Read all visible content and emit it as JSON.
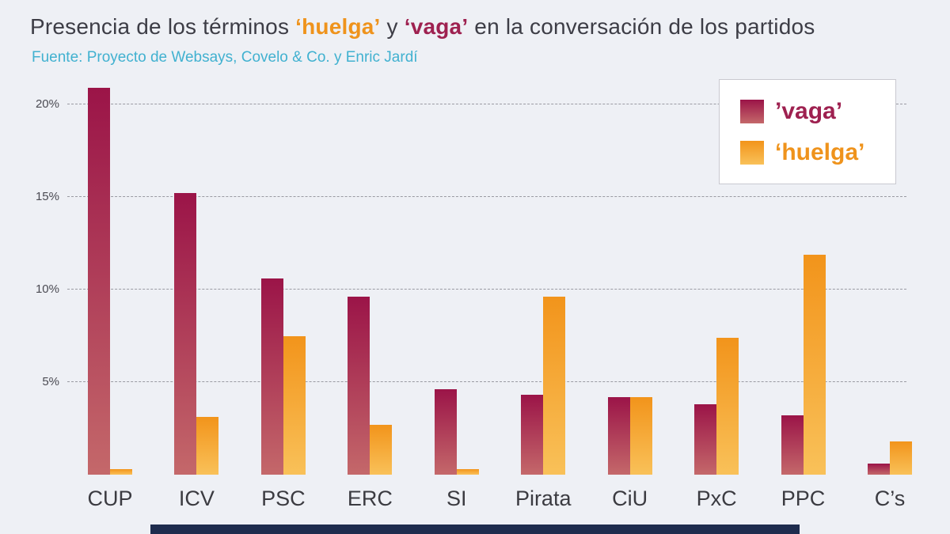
{
  "title": {
    "prefix": "Presencia de los términos ",
    "term_huelga": "‘huelga’",
    "middle": " y ",
    "term_vaga": "‘vaga’",
    "suffix": " en la conversación de los partidos"
  },
  "source": "Fuente: Proyecto de Websays, Covelo & Co. y Enric Jardí",
  "legend": {
    "vaga_label": "’vaga’",
    "huelga_label": "‘huelga’"
  },
  "colors": {
    "vaga_top": "#9b1448",
    "vaga_bottom": "#c4686a",
    "huelga_top": "#f2941b",
    "huelga_bottom": "#f9c159",
    "vaga_text": "#9e2150",
    "huelga_text": "#ef931c",
    "title_text": "#3d3d46",
    "source_text": "#41b1d0",
    "background": "#eef0f5",
    "footer": "#1e2c4e"
  },
  "chart_data": {
    "type": "bar",
    "categories": [
      "CUP",
      "ICV",
      "PSC",
      "ERC",
      "SI",
      "Pirata",
      "CiU",
      "PxC",
      "PPC",
      "C’s"
    ],
    "series": [
      {
        "name": "vaga",
        "values": [
          20.9,
          15.2,
          10.6,
          9.6,
          4.6,
          4.3,
          4.2,
          3.8,
          3.2,
          0.6
        ]
      },
      {
        "name": "huelga",
        "values": [
          0.3,
          3.1,
          7.5,
          2.7,
          0.3,
          9.6,
          4.2,
          7.4,
          11.9,
          1.8
        ]
      }
    ],
    "title": "Presencia de los términos ‘huelga’ y ‘vaga’ en la conversación de los partidos",
    "xlabel": "",
    "ylabel": "",
    "ytick_values": [
      5,
      10,
      15,
      20
    ],
    "ytick_labels": [
      "5%",
      "10%",
      "15%",
      "20%"
    ],
    "ylim": [
      0,
      21.2
    ],
    "grid": "dashed-horizontal",
    "legend_position": "top-right"
  }
}
